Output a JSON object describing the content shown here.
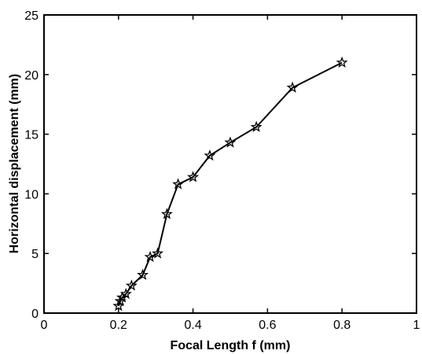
{
  "chart_data": {
    "type": "line",
    "title": "",
    "xlabel": "Focal Length f (mm)",
    "ylabel": "Horizontal displacement (mm)",
    "xlim": [
      0,
      1
    ],
    "ylim": [
      0,
      25
    ],
    "x_ticks": [
      "0",
      "0.2",
      "0.4",
      "0.6",
      "0.8",
      "1"
    ],
    "y_ticks": [
      "0",
      "5",
      "10",
      "15",
      "20",
      "25"
    ],
    "grid": false,
    "legend": "none",
    "marker": "star",
    "line_color": "#000000",
    "series": [
      {
        "x": [
          0.2,
          0.205,
          0.21,
          0.22,
          0.235,
          0.265,
          0.285,
          0.305,
          0.33,
          0.36,
          0.4,
          0.445,
          0.5,
          0.57,
          0.667,
          0.8
        ],
        "y": [
          0.6,
          1.0,
          1.3,
          1.6,
          2.3,
          3.2,
          4.7,
          5.0,
          8.3,
          10.8,
          11.4,
          13.2,
          14.3,
          15.6,
          18.9,
          21.0
        ]
      }
    ]
  }
}
